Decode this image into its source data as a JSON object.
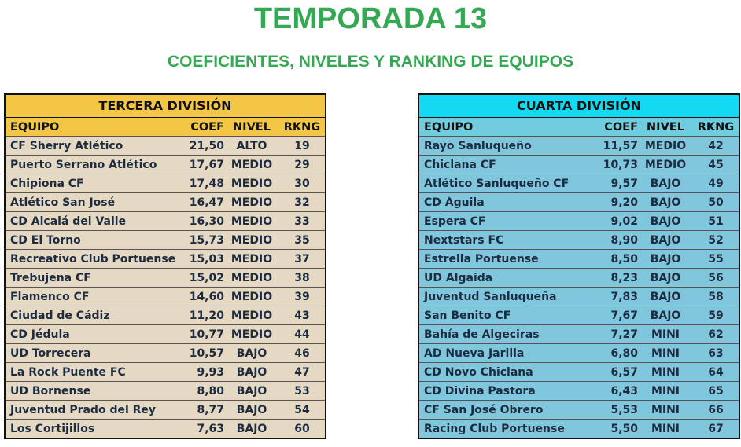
{
  "title": "TEMPORADA 13",
  "subtitle": "COEFICIENTES, NIVELES Y RANKING DE EQUIPOS",
  "columns": {
    "team": "EQUIPO",
    "coef": "COEF",
    "nivel": "NIVEL",
    "rank": "RKNG"
  },
  "colors": {
    "title_green": "#35a853",
    "tercera_header": "#f3c745",
    "tercera_body": "#e6d9c3",
    "cuarta_header": "#13d9f2",
    "cuarta_body": "#80c6dd"
  },
  "tercera": {
    "title": "TERCERA DIVISIÓN",
    "rows": [
      {
        "team": "CF Sherry Atlético",
        "coef": "21,50",
        "nivel": "ALTO",
        "rank": "19"
      },
      {
        "team": "Puerto Serrano Atlético",
        "coef": "17,67",
        "nivel": "MEDIO",
        "rank": "29"
      },
      {
        "team": "Chipiona CF",
        "coef": "17,48",
        "nivel": "MEDIO",
        "rank": "30"
      },
      {
        "team": "Atlético San José",
        "coef": "16,47",
        "nivel": "MEDIO",
        "rank": "32"
      },
      {
        "team": "CD Alcalá del Valle",
        "coef": "16,30",
        "nivel": "MEDIO",
        "rank": "33"
      },
      {
        "team": "CD El Torno",
        "coef": "15,73",
        "nivel": "MEDIO",
        "rank": "35"
      },
      {
        "team": "Recreativo Club Portuense",
        "coef": "15,03",
        "nivel": "MEDIO",
        "rank": "37"
      },
      {
        "team": "Trebujena CF",
        "coef": "15,02",
        "nivel": "MEDIO",
        "rank": "38"
      },
      {
        "team": "Flamenco CF",
        "coef": "14,60",
        "nivel": "MEDIO",
        "rank": "39"
      },
      {
        "team": "Ciudad de Cádiz",
        "coef": "11,20",
        "nivel": "MEDIO",
        "rank": "43"
      },
      {
        "team": "CD Jédula",
        "coef": "10,77",
        "nivel": "MEDIO",
        "rank": "44"
      },
      {
        "team": "UD Torrecera",
        "coef": "10,57",
        "nivel": "BAJO",
        "rank": "46"
      },
      {
        "team": "La Rock Puente FC",
        "coef": "9,93",
        "nivel": "BAJO",
        "rank": "47"
      },
      {
        "team": "UD Bornense",
        "coef": "8,80",
        "nivel": "BAJO",
        "rank": "53"
      },
      {
        "team": "Juventud Prado del Rey",
        "coef": "8,77",
        "nivel": "BAJO",
        "rank": "54"
      },
      {
        "team": "Los Cortijillos",
        "coef": "7,63",
        "nivel": "BAJO",
        "rank": "60"
      }
    ]
  },
  "cuarta": {
    "title": "CUARTA DIVISIÓN",
    "rows": [
      {
        "team": "Rayo Sanluqueño",
        "coef": "11,57",
        "nivel": "MEDIO",
        "rank": "42"
      },
      {
        "team": "Chiclana CF",
        "coef": "10,73",
        "nivel": "MEDIO",
        "rank": "45"
      },
      {
        "team": "Atlético Sanluqueño CF",
        "coef": "9,57",
        "nivel": "BAJO",
        "rank": "49"
      },
      {
        "team": "CD Águila",
        "coef": "9,20",
        "nivel": "BAJO",
        "rank": "50"
      },
      {
        "team": "Espera CF",
        "coef": "9,02",
        "nivel": "BAJO",
        "rank": "51"
      },
      {
        "team": "Nextstars FC",
        "coef": "8,90",
        "nivel": "BAJO",
        "rank": "52"
      },
      {
        "team": "Estrella Portuense",
        "coef": "8,50",
        "nivel": "BAJO",
        "rank": "55"
      },
      {
        "team": "UD Algaida",
        "coef": "8,23",
        "nivel": "BAJO",
        "rank": "56"
      },
      {
        "team": "Juventud Sanluqueña",
        "coef": "7,83",
        "nivel": "BAJO",
        "rank": "58"
      },
      {
        "team": "San Benito CF",
        "coef": "7,67",
        "nivel": "BAJO",
        "rank": "59"
      },
      {
        "team": "Bahía de Algeciras",
        "coef": "7,27",
        "nivel": "MINI",
        "rank": "62"
      },
      {
        "team": "AD Nueva Jarilla",
        "coef": "6,80",
        "nivel": "MINI",
        "rank": "63"
      },
      {
        "team": "CD Novo Chiclana",
        "coef": "6,57",
        "nivel": "MINI",
        "rank": "64"
      },
      {
        "team": "CD Divina Pastora",
        "coef": "6,43",
        "nivel": "MINI",
        "rank": "65"
      },
      {
        "team": "CF San José Obrero",
        "coef": "5,53",
        "nivel": "MINI",
        "rank": "66"
      },
      {
        "team": "Racing Club Portuense",
        "coef": "5,50",
        "nivel": "MINI",
        "rank": "67"
      }
    ]
  }
}
